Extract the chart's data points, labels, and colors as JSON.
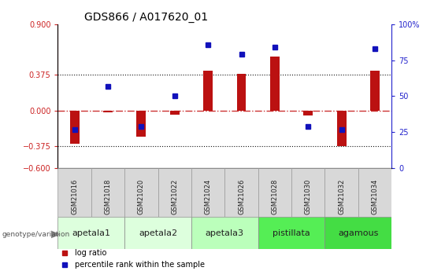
{
  "title": "GDS866 / A017620_01",
  "samples": [
    "GSM21016",
    "GSM21018",
    "GSM21020",
    "GSM21022",
    "GSM21024",
    "GSM21026",
    "GSM21028",
    "GSM21030",
    "GSM21032",
    "GSM21034"
  ],
  "log_ratio": [
    -0.35,
    -0.02,
    -0.27,
    -0.04,
    0.42,
    0.38,
    0.56,
    -0.05,
    -0.37,
    0.42
  ],
  "percentile_rank": [
    27,
    57,
    29,
    50,
    86,
    79,
    84,
    29,
    27,
    83
  ],
  "ylim_left": [
    -0.6,
    0.9
  ],
  "ylim_right": [
    0,
    100
  ],
  "yticks_left": [
    -0.6,
    -0.375,
    0,
    0.375,
    0.9
  ],
  "yticks_right": [
    0,
    25,
    50,
    75,
    100
  ],
  "hlines": [
    0.375,
    -0.375
  ],
  "bar_color": "#BB1111",
  "dot_color": "#1111BB",
  "zero_line_color": "#CC3333",
  "hline_color": "#111111",
  "groups": [
    {
      "name": "apetala1",
      "samples": [
        0,
        1
      ],
      "color": "#DDFFDD"
    },
    {
      "name": "apetala2",
      "samples": [
        2,
        3
      ],
      "color": "#DDFFDD"
    },
    {
      "name": "apetala3",
      "samples": [
        4,
        5
      ],
      "color": "#BBFFBB"
    },
    {
      "name": "pistillata",
      "samples": [
        6,
        7
      ],
      "color": "#55EE55"
    },
    {
      "name": "agamous",
      "samples": [
        8,
        9
      ],
      "color": "#44DD44"
    }
  ],
  "legend_bar_label": "log ratio",
  "legend_dot_label": "percentile rank within the sample",
  "genotype_label": "genotype/variation",
  "title_fontsize": 10,
  "tick_fontsize": 7,
  "label_fontsize": 7,
  "group_fontsize": 8,
  "sample_fontsize": 6
}
